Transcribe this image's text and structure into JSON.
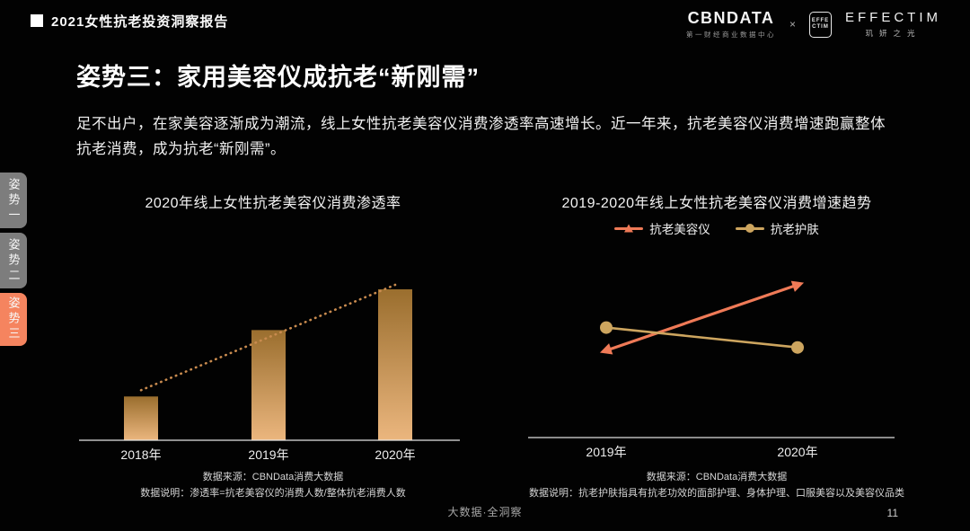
{
  "header": {
    "report_title": "2021女性抗老投资洞察报告",
    "brand_left": {
      "name": "CBNDATA",
      "subtitle": "第一财经商业数据中心"
    },
    "separator": "×",
    "brand_right": {
      "name": "EFFECTIM",
      "subtitle": "玑妍之光",
      "glyph_top": "EFFE",
      "glyph_bottom": "CTIM"
    }
  },
  "sidebar": {
    "items": [
      {
        "label": "姿势一",
        "active": false
      },
      {
        "label": "姿势二",
        "active": false
      },
      {
        "label": "姿势三",
        "active": true
      }
    ],
    "active_color": "#f5845f",
    "inactive_color": "#7d7d7d"
  },
  "main": {
    "heading": "姿势三：家用美容仪成抗老“新刚需”",
    "body": "足不出户，在家美容逐渐成为潮流，线上女性抗老美容仪消费渗透率高速增长。近一年来，抗老美容仪消费增速跑赢整体抗老消费，成为抗老“新刚需”。"
  },
  "charts": {
    "left": {
      "source": "数据来源：CBNData消费大数据",
      "note": "数据说明：渗透率=抗老美容仪的消费人数/整体抗老消费人数"
    },
    "right": {
      "source": "数据来源：CBNData消费大数据",
      "note": "数据说明：抗老护肤指具有抗老功效的面部护理、身体护理、口服美容以及美容仪品类"
    }
  },
  "chart_data": [
    {
      "type": "bar",
      "title": "2020年线上女性抗老美容仪消费渗透率",
      "categories": [
        "2018年",
        "2019年",
        "2020年"
      ],
      "values": [
        29,
        73,
        100
      ],
      "value_note": "no numeric axis shown; values estimated relative to tallest bar = 100",
      "trendline": true,
      "trend_color": "#c98b4f",
      "bar_gradient_top": "#9a6e2e",
      "bar_gradient_bottom": "#ebb67e",
      "axis_color": "#e6e6e6",
      "label_color": "#ededed",
      "ylim": [
        0,
        110
      ],
      "grid": false
    },
    {
      "type": "line",
      "title": "2019-2020年线上女性抗老美容仪消费增速趋势",
      "x": [
        "2019年",
        "2020年"
      ],
      "series": [
        {
          "name": "抗老美容仪",
          "values": [
            57,
            100
          ],
          "color": "#ef7a57",
          "marker": "triangle"
        },
        {
          "name": "抗老护肤",
          "values": [
            72,
            59
          ],
          "color": "#cda55f",
          "marker": "circle"
        }
      ],
      "value_note": "no numeric axis shown; values estimated relative to highest point = 100",
      "legend_position": "top",
      "axis_color": "#dddddd",
      "label_color": "#ededed",
      "ylim": [
        0,
        120
      ],
      "grid": false
    }
  ],
  "footer": {
    "center_text": "大数据·全洞察",
    "page_number": "11"
  }
}
